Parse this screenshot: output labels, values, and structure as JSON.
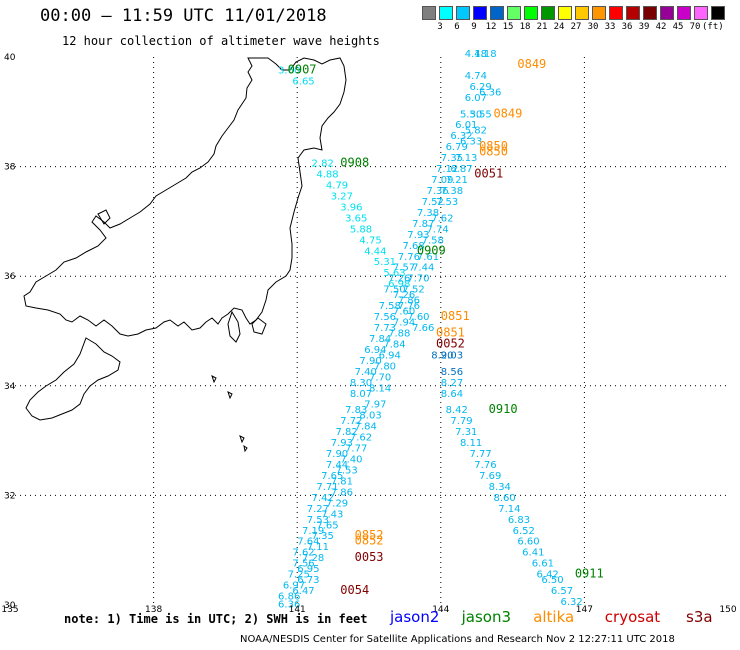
{
  "title": "00:00 – 11:59 UTC 11/01/2018",
  "subtitle": "12 hour collection of altimeter wave heights",
  "scale": {
    "colors": [
      "#7f7f7f",
      "#00ffff",
      "#00c8ff",
      "#0000ff",
      "#0064c8",
      "#64ff64",
      "#00ff00",
      "#009600",
      "#ffff00",
      "#ffc800",
      "#ff9600",
      "#ff0000",
      "#b40000",
      "#780000",
      "#960096",
      "#c800c8",
      "#ff64ff",
      "#000000"
    ],
    "labels": [
      "3",
      "6",
      "9",
      "12",
      "15",
      "18",
      "21",
      "24",
      "27",
      "30",
      "33",
      "36",
      "39",
      "42",
      "45",
      "70",
      "(ft)"
    ]
  },
  "axes": {
    "lon_labels": [
      "135",
      "138",
      "141",
      "144",
      "147",
      "150"
    ],
    "lat_labels": [
      "40",
      "38",
      "36",
      "34",
      "32",
      "30"
    ]
  },
  "map": {
    "lon_range": [
      135,
      150
    ],
    "lat_range": [
      30,
      40
    ],
    "grid": true
  },
  "pass_labels": [
    {
      "text": "0907",
      "lon": 140.8,
      "lat": 39.7,
      "color": "#008000"
    },
    {
      "text": "0908",
      "lon": 141.9,
      "lat": 38.0,
      "color": "#008000"
    },
    {
      "text": "0909",
      "lon": 143.5,
      "lat": 36.4,
      "color": "#008000"
    },
    {
      "text": "0910",
      "lon": 145.0,
      "lat": 33.5,
      "color": "#008000"
    },
    {
      "text": "0911",
      "lon": 146.8,
      "lat": 30.5,
      "color": "#008000"
    },
    {
      "text": "0849",
      "lon": 145.6,
      "lat": 39.8,
      "color": "#ff8c00"
    },
    {
      "text": "0849",
      "lon": 145.1,
      "lat": 38.9,
      "color": "#ff8c00"
    },
    {
      "text": "0850",
      "lon": 144.8,
      "lat": 38.3,
      "color": "#ff8c00"
    },
    {
      "text": "0850",
      "lon": 144.8,
      "lat": 38.2,
      "color": "#ff8c00"
    },
    {
      "text": "0851",
      "lon": 144.0,
      "lat": 35.2,
      "color": "#ff8c00"
    },
    {
      "text": "0851",
      "lon": 143.9,
      "lat": 34.9,
      "color": "#ff8c00"
    },
    {
      "text": "0852",
      "lon": 142.2,
      "lat": 31.2,
      "color": "#ff8c00"
    },
    {
      "text": "0852",
      "lon": 142.2,
      "lat": 31.1,
      "color": "#ff8c00"
    },
    {
      "text": "0051",
      "lon": 144.7,
      "lat": 37.8,
      "color": "#800000"
    },
    {
      "text": "0052",
      "lon": 143.9,
      "lat": 34.7,
      "color": "#800000"
    },
    {
      "text": "0053",
      "lon": 142.2,
      "lat": 30.8,
      "color": "#800000"
    },
    {
      "text": "0054",
      "lon": 141.9,
      "lat": 30.2,
      "color": "#800000"
    }
  ],
  "tracks": [
    {
      "color": "#00e0f0",
      "points": [
        {
          "v": "3.60",
          "lon": 140.6,
          "lat": 39.7
        },
        {
          "v": "6.65",
          "lon": 140.9,
          "lat": 39.5
        },
        {
          "v": "2.82",
          "lon": 141.3,
          "lat": 38.0
        },
        {
          "v": "4.88",
          "lon": 141.4,
          "lat": 37.8
        },
        {
          "v": "4.79",
          "lon": 141.6,
          "lat": 37.6
        },
        {
          "v": "3.27",
          "lon": 141.7,
          "lat": 37.4
        },
        {
          "v": "3.96",
          "lon": 141.9,
          "lat": 37.2
        },
        {
          "v": "3.65",
          "lon": 142.0,
          "lat": 37.0
        },
        {
          "v": "5.88",
          "lon": 142.1,
          "lat": 36.8
        },
        {
          "v": "4.75",
          "lon": 142.3,
          "lat": 36.6
        },
        {
          "v": "4.44",
          "lon": 142.4,
          "lat": 36.4
        },
        {
          "v": "5.31",
          "lon": 142.6,
          "lat": 36.2
        },
        {
          "v": "5.63",
          "lon": 142.8,
          "lat": 36.0
        },
        {
          "v": "6.98",
          "lon": 142.9,
          "lat": 35.8
        }
      ]
    },
    {
      "color": "#00b8f0",
      "points": [
        {
          "v": "7.26",
          "lon": 143.0,
          "lat": 35.6
        },
        {
          "v": "7.76",
          "lon": 143.1,
          "lat": 35.4
        },
        {
          "v": "7.60",
          "lon": 143.3,
          "lat": 35.2
        },
        {
          "v": "7.66",
          "lon": 143.4,
          "lat": 35.0
        },
        {
          "v": "8.27",
          "lon": 144.0,
          "lat": 34.0
        },
        {
          "v": "8.64",
          "lon": 144.0,
          "lat": 33.8
        },
        {
          "v": "8.42",
          "lon": 144.1,
          "lat": 33.5
        },
        {
          "v": "7.79",
          "lon": 144.2,
          "lat": 33.3
        },
        {
          "v": "7.31",
          "lon": 144.3,
          "lat": 33.1
        },
        {
          "v": "8.11",
          "lon": 144.4,
          "lat": 32.9
        },
        {
          "v": "7.77",
          "lon": 144.6,
          "lat": 32.7
        },
        {
          "v": "7.76",
          "lon": 144.7,
          "lat": 32.5
        },
        {
          "v": "7.69",
          "lon": 144.8,
          "lat": 32.3
        },
        {
          "v": "8.34",
          "lon": 145.0,
          "lat": 32.1
        },
        {
          "v": "8.60",
          "lon": 145.1,
          "lat": 31.9
        },
        {
          "v": "7.14",
          "lon": 145.2,
          "lat": 31.7
        },
        {
          "v": "6.83",
          "lon": 145.4,
          "lat": 31.5
        },
        {
          "v": "6.52",
          "lon": 145.5,
          "lat": 31.3
        },
        {
          "v": "6.60",
          "lon": 145.6,
          "lat": 31.1
        },
        {
          "v": "6.41",
          "lon": 145.7,
          "lat": 30.9
        },
        {
          "v": "6.61",
          "lon": 145.9,
          "lat": 30.7
        },
        {
          "v": "6.42",
          "lon": 146.0,
          "lat": 30.5
        },
        {
          "v": "6.50",
          "lon": 146.1,
          "lat": 30.4
        },
        {
          "v": "6.57",
          "lon": 146.3,
          "lat": 30.2
        },
        {
          "v": "6.32",
          "lon": 146.5,
          "lat": 30.0
        }
      ]
    },
    {
      "color": "#00b8f0",
      "points": [
        {
          "v": "4.18",
          "lon": 144.5,
          "lat": 40.0
        },
        {
          "v": "4.74",
          "lon": 144.5,
          "lat": 39.6
        },
        {
          "v": "6.29",
          "lon": 144.6,
          "lat": 39.4
        },
        {
          "v": "6.07",
          "lon": 144.5,
          "lat": 39.2
        },
        {
          "v": "5.30",
          "lon": 144.4,
          "lat": 38.9
        },
        {
          "v": "6.01",
          "lon": 144.3,
          "lat": 38.7
        },
        {
          "v": "6.32",
          "lon": 144.2,
          "lat": 38.5
        },
        {
          "v": "6.79",
          "lon": 144.1,
          "lat": 38.3
        },
        {
          "v": "7.35",
          "lon": 144.0,
          "lat": 38.1
        },
        {
          "v": "7.12",
          "lon": 143.9,
          "lat": 37.9
        },
        {
          "v": "7.09",
          "lon": 143.8,
          "lat": 37.7
        },
        {
          "v": "7.36",
          "lon": 143.7,
          "lat": 37.5
        },
        {
          "v": "7.52",
          "lon": 143.6,
          "lat": 37.3
        },
        {
          "v": "7.38",
          "lon": 143.5,
          "lat": 37.1
        },
        {
          "v": "7.87",
          "lon": 143.4,
          "lat": 36.9
        },
        {
          "v": "7.93",
          "lon": 143.3,
          "lat": 36.7
        },
        {
          "v": "7.68",
          "lon": 143.2,
          "lat": 36.5
        },
        {
          "v": "7.76",
          "lon": 143.1,
          "lat": 36.3
        },
        {
          "v": "7.57",
          "lon": 143.0,
          "lat": 36.1
        },
        {
          "v": "7.26",
          "lon": 142.9,
          "lat": 35.9
        },
        {
          "v": "7.50",
          "lon": 142.8,
          "lat": 35.7
        },
        {
          "v": "7.58",
          "lon": 142.7,
          "lat": 35.4
        },
        {
          "v": "7.56",
          "lon": 142.6,
          "lat": 35.2
        },
        {
          "v": "7.73",
          "lon": 142.6,
          "lat": 35.0
        },
        {
          "v": "7.84",
          "lon": 142.5,
          "lat": 34.8
        },
        {
          "v": "6.94",
          "lon": 142.4,
          "lat": 34.6
        },
        {
          "v": "7.90",
          "lon": 142.3,
          "lat": 34.4
        },
        {
          "v": "7.40",
          "lon": 142.2,
          "lat": 34.2
        },
        {
          "v": "8.30",
          "lon": 142.1,
          "lat": 34.0
        },
        {
          "v": "8.07",
          "lon": 142.1,
          "lat": 33.8
        },
        {
          "v": "7.83",
          "lon": 142.0,
          "lat": 33.5
        },
        {
          "v": "7.72",
          "lon": 141.9,
          "lat": 33.3
        },
        {
          "v": "7.82",
          "lon": 141.8,
          "lat": 33.1
        },
        {
          "v": "7.93",
          "lon": 141.7,
          "lat": 32.9
        },
        {
          "v": "7.90",
          "lon": 141.6,
          "lat": 32.7
        },
        {
          "v": "7.44",
          "lon": 141.6,
          "lat": 32.5
        },
        {
          "v": "7.65",
          "lon": 141.5,
          "lat": 32.3
        },
        {
          "v": "7.71",
          "lon": 141.4,
          "lat": 32.1
        },
        {
          "v": "7.42",
          "lon": 141.3,
          "lat": 31.9
        },
        {
          "v": "7.27",
          "lon": 141.2,
          "lat": 31.7
        },
        {
          "v": "7.53",
          "lon": 141.2,
          "lat": 31.5
        },
        {
          "v": "7.19",
          "lon": 141.1,
          "lat": 31.3
        },
        {
          "v": "7.64",
          "lon": 141.0,
          "lat": 31.1
        },
        {
          "v": "7.62",
          "lon": 140.9,
          "lat": 30.9
        },
        {
          "v": "7.56",
          "lon": 140.9,
          "lat": 30.7
        },
        {
          "v": "7.25",
          "lon": 140.8,
          "lat": 30.5
        },
        {
          "v": "6.97",
          "lon": 140.7,
          "lat": 30.3
        },
        {
          "v": "6.86",
          "lon": 140.6,
          "lat": 30.1
        },
        {
          "v": "6.36",
          "lon": 140.6,
          "lat": 29.95
        }
      ]
    },
    {
      "color": "#00b8f0",
      "points": [
        {
          "v": "4.18",
          "lon": 144.7,
          "lat": 40.0
        },
        {
          "v": "6.36",
          "lon": 144.8,
          "lat": 39.3
        },
        {
          "v": "5.55",
          "lon": 144.6,
          "lat": 38.9
        },
        {
          "v": "5.82",
          "lon": 144.5,
          "lat": 38.6
        },
        {
          "v": "6.33",
          "lon": 144.4,
          "lat": 38.4
        },
        {
          "v": "7.13",
          "lon": 144.3,
          "lat": 38.1
        },
        {
          "v": "6.87",
          "lon": 144.2,
          "lat": 37.9
        },
        {
          "v": "7.21",
          "lon": 144.1,
          "lat": 37.7
        },
        {
          "v": "7.38",
          "lon": 144.0,
          "lat": 37.5
        },
        {
          "v": "7.53",
          "lon": 143.9,
          "lat": 37.3
        },
        {
          "v": "7.62",
          "lon": 143.8,
          "lat": 37.0
        },
        {
          "v": "7.74",
          "lon": 143.7,
          "lat": 36.8
        },
        {
          "v": "7.58",
          "lon": 143.6,
          "lat": 36.6
        },
        {
          "v": "7.61",
          "lon": 143.5,
          "lat": 36.3
        },
        {
          "v": "7.44",
          "lon": 143.4,
          "lat": 36.1
        },
        {
          "v": "7.70",
          "lon": 143.3,
          "lat": 35.9
        },
        {
          "v": "7.52",
          "lon": 143.2,
          "lat": 35.7
        },
        {
          "v": "7.86",
          "lon": 143.1,
          "lat": 35.5
        },
        {
          "v": "7.60",
          "lon": 143.0,
          "lat": 35.3
        },
        {
          "v": "7.94",
          "lon": 143.0,
          "lat": 35.1
        },
        {
          "v": "7.88",
          "lon": 142.9,
          "lat": 34.9
        },
        {
          "v": "7.84",
          "lon": 142.8,
          "lat": 34.7
        },
        {
          "v": "6.94",
          "lon": 142.7,
          "lat": 34.5
        },
        {
          "v": "7.80",
          "lon": 142.6,
          "lat": 34.3
        },
        {
          "v": "7.70",
          "lon": 142.5,
          "lat": 34.1
        },
        {
          "v": "8.14",
          "lon": 142.5,
          "lat": 33.9
        },
        {
          "v": "7.97",
          "lon": 142.4,
          "lat": 33.6
        },
        {
          "v": "8.03",
          "lon": 142.3,
          "lat": 33.4
        },
        {
          "v": "7.84",
          "lon": 142.2,
          "lat": 33.2
        },
        {
          "v": "7.62",
          "lon": 142.1,
          "lat": 33.0
        },
        {
          "v": "7.77",
          "lon": 142.0,
          "lat": 32.8
        },
        {
          "v": "7.40",
          "lon": 141.9,
          "lat": 32.6
        },
        {
          "v": "7.53",
          "lon": 141.8,
          "lat": 32.4
        },
        {
          "v": "7.81",
          "lon": 141.7,
          "lat": 32.2
        },
        {
          "v": "7.86",
          "lon": 141.7,
          "lat": 32.0
        },
        {
          "v": "7.29",
          "lon": 141.6,
          "lat": 31.8
        },
        {
          "v": "7.43",
          "lon": 141.5,
          "lat": 31.6
        },
        {
          "v": "7.65",
          "lon": 141.4,
          "lat": 31.4
        },
        {
          "v": "7.35",
          "lon": 141.3,
          "lat": 31.2
        },
        {
          "v": "7.11",
          "lon": 141.2,
          "lat": 31.0
        },
        {
          "v": "7.28",
          "lon": 141.1,
          "lat": 30.8
        },
        {
          "v": "6.95",
          "lon": 141.0,
          "lat": 30.6
        },
        {
          "v": "6.73",
          "lon": 141.0,
          "lat": 30.4
        },
        {
          "v": "6.47",
          "lon": 140.9,
          "lat": 30.2
        }
      ]
    },
    {
      "color": "#0070c0",
      "points": [
        {
          "v": "9.03",
          "lon": 144.0,
          "lat": 34.5
        },
        {
          "v": "8.56",
          "lon": 144.0,
          "lat": 34.2
        },
        {
          "v": "8.20",
          "lon": 143.8,
          "lat": 34.5
        }
      ]
    }
  ],
  "note": "note: 1) Time is in UTC; 2) SWH is in feet",
  "satellites": [
    {
      "name": "jason2",
      "color": "#0000ff"
    },
    {
      "name": "jason3",
      "color": "#008000"
    },
    {
      "name": "altika",
      "color": "#ff8c00"
    },
    {
      "name": "cryosat",
      "color": "#cc0000"
    },
    {
      "name": "s3a",
      "color": "#800000"
    }
  ],
  "footer": "NOAA/NESDIS Center for Satellite Applications and Research    Nov  2 12:27:11 UTC 2018"
}
